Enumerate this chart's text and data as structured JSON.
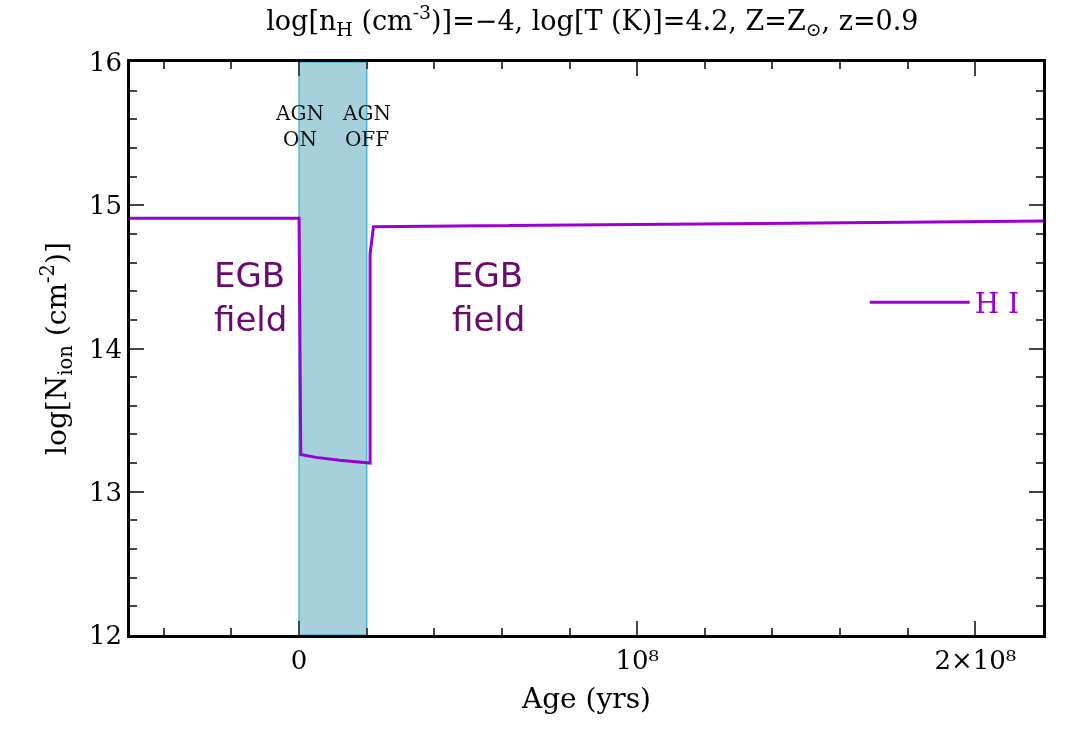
{
  "chart_data": {
    "type": "line",
    "title": "log[n$_{H}$ (cm$^{-3}$)]=−4, log[T (K)]=4.2, Z=Z$_{⊙}$, z=0.9",
    "xlabel": "Age (yrs)",
    "ylabel": "log[N$_{ion}$ (cm$^{-2}$)]",
    "x": [
      -50000000,
      0,
      500000,
      5000000,
      12000000,
      21000000,
      21000000,
      22000000,
      220000000
    ],
    "series": [
      {
        "name": "H I",
        "color": "#9b00d3",
        "values": [
          14.91,
          14.91,
          13.26,
          13.24,
          13.22,
          13.2,
          14.66,
          14.85,
          14.89
        ]
      }
    ],
    "xlim": [
      -50000000,
      220000000
    ],
    "xticks": [
      0,
      {
        "value": 100000000,
        "label": "10⁸"
      },
      {
        "value": 200000000,
        "label": "2×10⁸"
      }
    ],
    "ylim": [
      12,
      16
    ],
    "yticks": [
      12,
      13,
      14,
      15,
      16
    ],
    "bands": [
      {
        "axis": "x",
        "from": 0,
        "to": 20000000,
        "color": "#a5d0dc"
      }
    ],
    "annotations": [
      {
        "text": "AGN\nON",
        "x": 0,
        "y": 15.55
      },
      {
        "text": "AGN\nOFF",
        "x": 20000000,
        "y": 15.55
      },
      "EGB\nfield",
      "EGB\nfield"
    ],
    "legend": "right",
    "grid": false,
    "marker": "none",
    "line_style": "solid"
  }
}
